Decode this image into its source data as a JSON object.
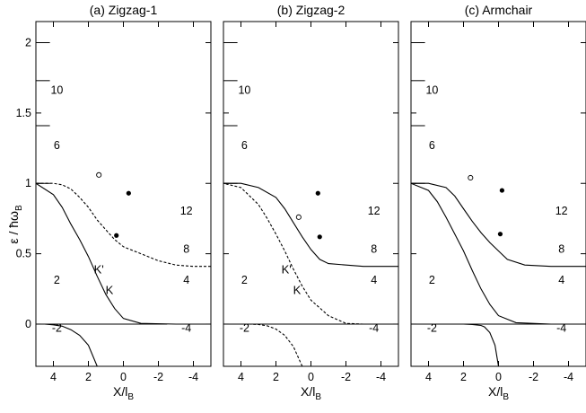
{
  "figure": {
    "ylabel": "ε / ħω",
    "ylabel_sub": "B"
  },
  "chart_data": [
    {
      "type": "line",
      "title": "(a) Zigzag-1",
      "xlabel": "X/l",
      "xlabel_sub": "B",
      "xlim": [
        5,
        -5
      ],
      "ylim": [
        -0.3,
        2.15
      ],
      "xticks": [
        "4",
        "2",
        "0",
        "-2",
        "-4"
      ],
      "yticks": [
        "0",
        "0.5",
        "1",
        "1.5",
        "2"
      ],
      "filling_factor_labels": [
        "10",
        "6",
        "2",
        "-2",
        "12",
        "8",
        "4",
        "-4"
      ],
      "annotations": [
        "K'",
        "K"
      ],
      "bulk_levels": [
        0,
        1,
        1.41,
        1.73,
        2
      ],
      "series": [
        {
          "style": "solid",
          "x": [
            5,
            0,
            -2.5
          ],
          "y": [
            0,
            0,
            0
          ]
        },
        {
          "style": "solid",
          "x": [
            1.5,
            2,
            2.5,
            3,
            3.5,
            4,
            4.5,
            5
          ],
          "y": [
            -0.3,
            -0.15,
            -0.08,
            -0.04,
            -0.015,
            -0.005,
            0,
            0
          ]
        },
        {
          "style": "solid",
          "x": [
            -5,
            -3,
            -1,
            0,
            0.5,
            1,
            1.5,
            2,
            2.5,
            3,
            3.5,
            4,
            5
          ],
          "y": [
            0,
            0,
            0.005,
            0.04,
            0.11,
            0.21,
            0.34,
            0.48,
            0.6,
            0.71,
            0.83,
            0.92,
            1
          ]
        },
        {
          "style": "dashed",
          "x": [
            -5,
            -4,
            -3,
            -2,
            -1,
            0,
            0.5,
            1,
            1.5,
            2,
            2.5,
            3,
            3.5,
            4,
            5
          ],
          "y": [
            0.41,
            0.41,
            0.42,
            0.45,
            0.5,
            0.55,
            0.6,
            0.67,
            0.74,
            0.83,
            0.9,
            0.96,
            0.99,
            1,
            1
          ]
        }
      ],
      "open_circles": [
        {
          "x": 1.4,
          "y": 1.06
        }
      ],
      "filled_circles": [
        {
          "x": 0.4,
          "y": 0.63
        },
        {
          "x": -0.3,
          "y": 0.93
        }
      ]
    },
    {
      "type": "line",
      "title": "(b) Zigzag-2",
      "xlabel": "X/l",
      "xlabel_sub": "B",
      "xlim": [
        5,
        -5
      ],
      "ylim": [
        -0.3,
        2.15
      ],
      "xticks": [
        "4",
        "2",
        "0",
        "-2",
        "-4"
      ],
      "yticks": [
        "0",
        "0.5",
        "1",
        "1.5",
        "2"
      ],
      "filling_factor_labels": [
        "10",
        "6",
        "2",
        "-2",
        "12",
        "8",
        "4",
        "-4"
      ],
      "annotations": [
        "K'",
        "K"
      ],
      "bulk_levels": [
        0,
        1,
        1.41,
        1.73,
        2
      ],
      "series": [
        {
          "style": "solid",
          "x": [
            5,
            0,
            -5
          ],
          "y": [
            0,
            0,
            0
          ]
        },
        {
          "style": "solid",
          "x": [
            -5,
            -3,
            -1,
            -0.5,
            0,
            0.5,
            1,
            1.5,
            2,
            3,
            4,
            5
          ],
          "y": [
            0.41,
            0.41,
            0.43,
            0.46,
            0.53,
            0.62,
            0.72,
            0.82,
            0.9,
            0.97,
            1,
            1
          ]
        },
        {
          "style": "dashed",
          "x": [
            -3,
            -2,
            -1,
            0,
            0.5,
            1,
            1.5,
            2,
            2.5,
            3,
            4,
            5
          ],
          "y": [
            0,
            0.005,
            0.06,
            0.17,
            0.27,
            0.39,
            0.52,
            0.64,
            0.75,
            0.85,
            0.97,
            1
          ]
        },
        {
          "style": "dashed",
          "x": [
            0.5,
            1,
            1.5,
            2,
            2.5,
            3,
            3.5
          ],
          "y": [
            -0.3,
            -0.16,
            -0.08,
            -0.035,
            -0.012,
            -0.003,
            0
          ]
        }
      ],
      "open_circles": [
        {
          "x": 0.7,
          "y": 0.76
        }
      ],
      "filled_circles": [
        {
          "x": -0.5,
          "y": 0.62
        },
        {
          "x": -0.4,
          "y": 0.93
        }
      ]
    },
    {
      "type": "line",
      "title": "(c) Armchair",
      "xlabel": "X/l",
      "xlabel_sub": "B",
      "xlim": [
        5,
        -5
      ],
      "ylim": [
        -0.3,
        2.15
      ],
      "xticks": [
        "4",
        "2",
        "0",
        "-2",
        "-4"
      ],
      "yticks": [
        "0",
        "0.5",
        "1",
        "1.5",
        "2"
      ],
      "filling_factor_labels": [
        "10",
        "6",
        "2",
        "-2",
        "12",
        "8",
        "4",
        "-4"
      ],
      "annotations": [],
      "bulk_levels": [
        0,
        1,
        1.41,
        1.73,
        2
      ],
      "series": [
        {
          "style": "solid",
          "x": [
            5,
            0,
            -5
          ],
          "y": [
            0,
            0,
            0
          ]
        },
        {
          "style": "solid",
          "x": [
            0,
            0.2,
            0.5,
            0.8,
            1,
            1.5,
            2
          ],
          "y": [
            -0.3,
            -0.15,
            -0.06,
            -0.02,
            -0.01,
            -0.003,
            0
          ]
        },
        {
          "style": "solid",
          "x": [
            -5,
            -3,
            -1,
            0,
            0.5,
            1,
            1.5,
            2,
            2.5,
            3,
            3.5,
            4,
            5
          ],
          "y": [
            0,
            0,
            0.01,
            0.06,
            0.14,
            0.25,
            0.38,
            0.52,
            0.64,
            0.76,
            0.87,
            0.95,
            1
          ]
        },
        {
          "style": "solid",
          "x": [
            -5,
            -3,
            -1.5,
            -0.5,
            0,
            0.5,
            1,
            1.5,
            2,
            2.5,
            3,
            4,
            5
          ],
          "y": [
            0.41,
            0.41,
            0.42,
            0.46,
            0.52,
            0.58,
            0.65,
            0.73,
            0.82,
            0.91,
            0.97,
            1,
            1
          ]
        }
      ],
      "open_circles": [
        {
          "x": 1.6,
          "y": 1.04
        }
      ],
      "filled_circles": [
        {
          "x": -0.1,
          "y": 0.64
        },
        {
          "x": -0.2,
          "y": 0.95
        }
      ]
    }
  ]
}
